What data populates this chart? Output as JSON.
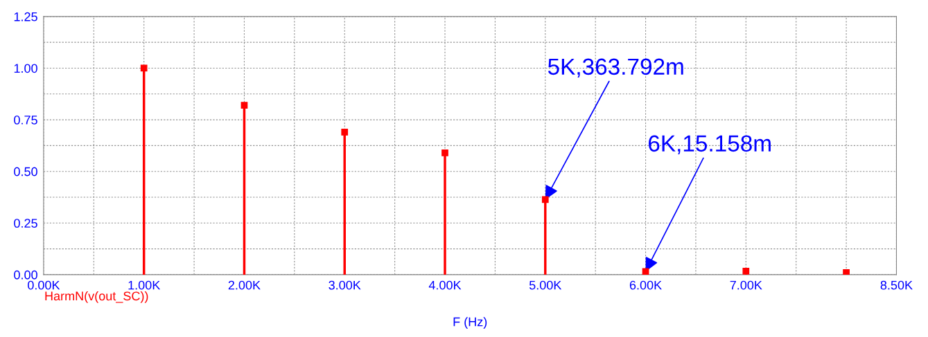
{
  "chart_data": {
    "type": "lollipop",
    "xlabel": "F (Hz)",
    "x": [
      1000,
      2000,
      3000,
      4000,
      5000,
      6000,
      7000,
      8000
    ],
    "series": [
      {
        "name": "HarmN(v(out_SC))",
        "color": "#ff0000",
        "values": [
          1.0,
          0.82,
          0.69,
          0.59,
          0.364,
          0.015,
          0.017,
          0.01
        ]
      }
    ],
    "marker": "square",
    "xlim": [
      0,
      8500
    ],
    "xticks": [
      {
        "value": 0,
        "label": "0.00K"
      },
      {
        "value": 500,
        "label": null
      },
      {
        "value": 1000,
        "label": "1.00K"
      },
      {
        "value": 1500,
        "label": null
      },
      {
        "value": 2000,
        "label": "2.00K"
      },
      {
        "value": 2500,
        "label": null
      },
      {
        "value": 3000,
        "label": "3.00K"
      },
      {
        "value": 3500,
        "label": null
      },
      {
        "value": 4000,
        "label": "4.00K"
      },
      {
        "value": 4500,
        "label": null
      },
      {
        "value": 5000,
        "label": "5.00K"
      },
      {
        "value": 5500,
        "label": null
      },
      {
        "value": 6000,
        "label": "6.00K"
      },
      {
        "value": 6500,
        "label": null
      },
      {
        "value": 7000,
        "label": "7.00K"
      },
      {
        "value": 7500,
        "label": null
      },
      {
        "value": 8000,
        "label": null
      },
      {
        "value": 8500,
        "label": "8.50K"
      }
    ],
    "ylim": [
      0,
      1.25
    ],
    "yticks": [
      {
        "value": 0,
        "label": "0.00"
      },
      {
        "value": 0.125,
        "label": null
      },
      {
        "value": 0.25,
        "label": "0.25"
      },
      {
        "value": 0.375,
        "label": null
      },
      {
        "value": 0.5,
        "label": "0.50"
      },
      {
        "value": 0.625,
        "label": null
      },
      {
        "value": 0.75,
        "label": "0.75"
      },
      {
        "value": 0.875,
        "label": null
      },
      {
        "value": 1.0,
        "label": "1.00"
      },
      {
        "value": 1.125,
        "label": null
      },
      {
        "value": 1.25,
        "label": "1.25"
      }
    ],
    "grid": true,
    "legend": "bottom left",
    "annotations": [
      {
        "text": "5K,363.792m",
        "x": 5000,
        "y": 0.363792
      },
      {
        "text": "6K,15.158m",
        "x": 6000,
        "y": 0.015158
      }
    ]
  }
}
